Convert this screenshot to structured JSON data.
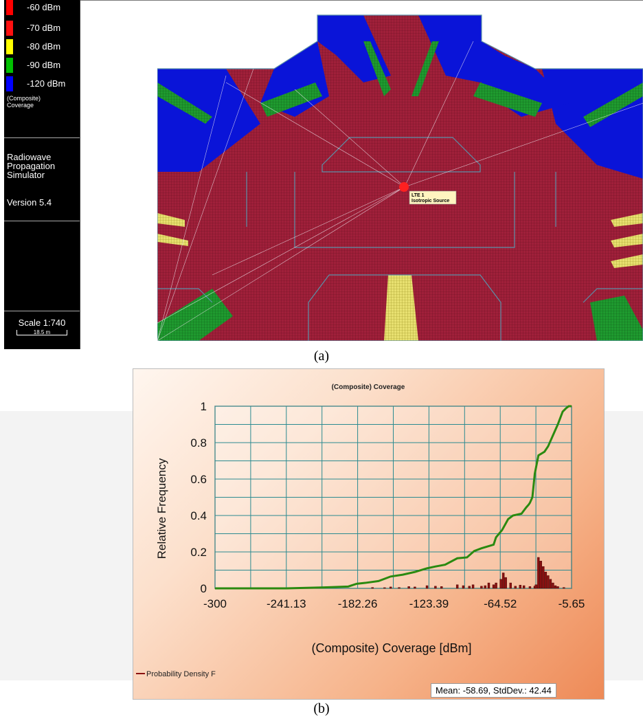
{
  "legend": {
    "items": [
      {
        "label": "-60 dBm",
        "color": "#ff0000"
      },
      {
        "label": "-70 dBm",
        "color": "#ff1010"
      },
      {
        "label": "-80 dBm",
        "color": "#ffff00"
      },
      {
        "label": "-90 dBm",
        "color": "#00c000"
      },
      {
        "label": "-120 dBm",
        "color": "#0000ff"
      }
    ],
    "caption_line1": "(Composite)",
    "caption_line2": "Coverage"
  },
  "app": {
    "name_line1": "Radiowave",
    "name_line2": "Propagation",
    "name_line3": "Simulator",
    "version": "Version 5.4"
  },
  "scale": {
    "label": "Scale 1:740",
    "bar_label": "18.5 m"
  },
  "map": {
    "source_label_line1": "LTE 1",
    "source_label_line2": "Isotropic Source",
    "coverage_colors": {
      "strong": "#a0203a",
      "medium": "#1f9a2f",
      "weak": "#e8e070",
      "poor": "#0a14d8"
    }
  },
  "captions": {
    "a": "(a)",
    "b": "(b)"
  },
  "chart_data": {
    "type": "line",
    "title": "(Composite) Coverage",
    "xlabel": "(Composite) Coverage [dBm]",
    "ylabel": "Relative Frequency",
    "xlim": [
      -300,
      -5.65
    ],
    "ylim": [
      0,
      1
    ],
    "x_ticks": [
      "-300",
      "-241.13",
      "-182.26",
      "-123.39",
      "-64.52",
      "-5.65"
    ],
    "y_ticks": [
      "0",
      "0.2",
      "0.4",
      "0.6",
      "0.8",
      "1"
    ],
    "grid": true,
    "legend_position": "bottom-left",
    "legend_label": "Probability Density F",
    "stats": "Mean: -58.69, StdDev.: 42.44",
    "cdf": {
      "color": "#2a8a10",
      "x": [
        -300,
        -241,
        -210,
        -190,
        -183,
        -176,
        -165,
        -155,
        -145,
        -135,
        -125,
        -118,
        -110,
        -100,
        -92,
        -86,
        -80,
        -75,
        -70,
        -68,
        -63,
        -58,
        -54,
        -47,
        -43,
        -41,
        -40,
        -38,
        -36,
        -33,
        -28,
        -25,
        -21,
        -17,
        -13,
        -10,
        -8,
        -5.65
      ],
      "y": [
        0,
        0,
        0.005,
        0.01,
        0.025,
        0.03,
        0.04,
        0.065,
        0.075,
        0.09,
        0.11,
        0.12,
        0.13,
        0.165,
        0.17,
        0.205,
        0.22,
        0.23,
        0.24,
        0.28,
        0.32,
        0.38,
        0.4,
        0.41,
        0.445,
        0.46,
        0.47,
        0.5,
        0.63,
        0.73,
        0.75,
        0.78,
        0.84,
        0.9,
        0.97,
        0.99,
        1,
        1
      ]
    },
    "pdf": {
      "color": "#8a1010",
      "x": [
        -170,
        -160,
        -155,
        -148,
        -140,
        -135,
        -125,
        -118,
        -113,
        -100,
        -95,
        -90,
        -87,
        -80,
        -77,
        -74,
        -70,
        -68,
        -64,
        -62,
        -60,
        -56,
        -52,
        -48,
        -45,
        -40,
        -36,
        -35,
        -33,
        -31,
        -29,
        -27,
        -25,
        -23,
        -21,
        -19,
        -17,
        -12
      ],
      "y": [
        0.005,
        0.004,
        0.008,
        0.005,
        0.01,
        0.008,
        0.015,
        0.012,
        0.01,
        0.02,
        0.015,
        0.012,
        0.02,
        0.012,
        0.015,
        0.03,
        0.02,
        0.03,
        0.05,
        0.085,
        0.06,
        0.03,
        0.012,
        0.018,
        0.015,
        0.01,
        0.012,
        0.02,
        0.17,
        0.15,
        0.12,
        0.09,
        0.07,
        0.05,
        0.03,
        0.015,
        0.01,
        0.005
      ]
    }
  }
}
